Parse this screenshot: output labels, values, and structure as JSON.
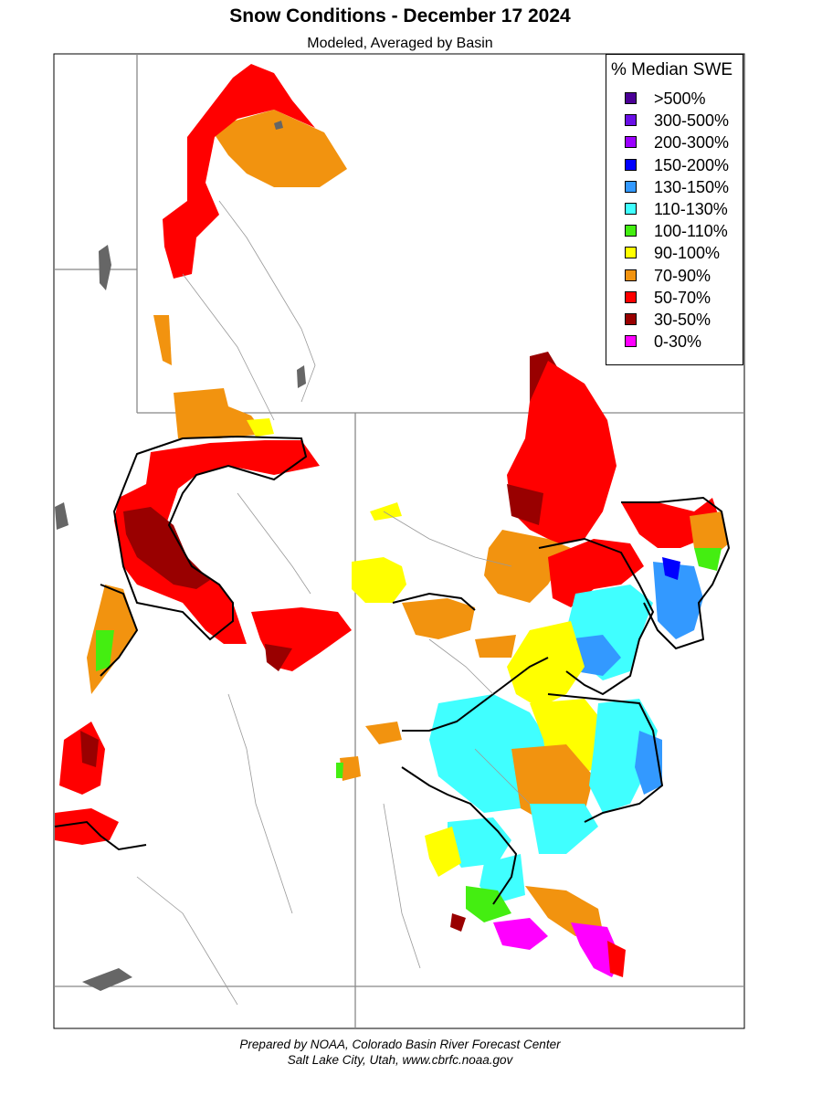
{
  "title": "Snow Conditions - December 17 2024",
  "subtitle": "Modeled, Averaged by Basin",
  "legend": {
    "title": "% Median SWE",
    "items": [
      {
        "label": ">500%",
        "color": "#4b0096"
      },
      {
        "label": "300-500%",
        "color": "#6a0fe6"
      },
      {
        "label": "200-300%",
        "color": "#9b00ff"
      },
      {
        "label": "150-200%",
        "color": "#0000ff"
      },
      {
        "label": "130-150%",
        "color": "#3399ff"
      },
      {
        "label": "110-130%",
        "color": "#40ffff"
      },
      {
        "label": "100-110%",
        "color": "#44ee11"
      },
      {
        "label": "90-100%",
        "color": "#ffff00"
      },
      {
        "label": "70-90%",
        "color": "#f2930f"
      },
      {
        "label": "50-70%",
        "color": "#ff0000"
      },
      {
        "label": "30-50%",
        "color": "#990000"
      },
      {
        "label": "0-30%",
        "color": "#ff00ff"
      }
    ]
  },
  "footer": {
    "line1": "Prepared by NOAA, Colorado Basin River Forecast Center",
    "line2": "Salt Lake City, Utah, www.cbrfc.noaa.gov"
  }
}
